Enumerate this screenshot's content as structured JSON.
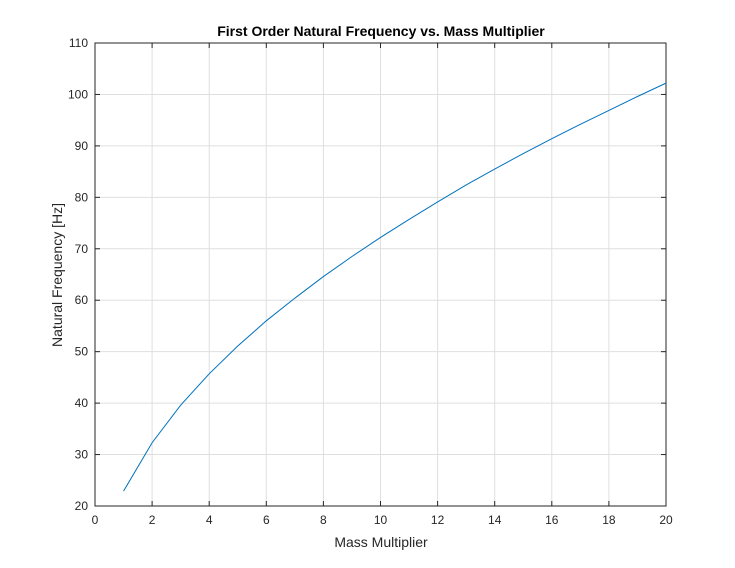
{
  "chart_data": {
    "type": "line",
    "title": "First Order Natural Frequency vs. Mass Multiplier",
    "xlabel": "Mass Multiplier",
    "ylabel": "Natural Frequency [Hz]",
    "xlim": [
      0,
      20
    ],
    "ylim": [
      20,
      110
    ],
    "xticks": [
      0,
      2,
      4,
      6,
      8,
      10,
      12,
      14,
      16,
      18,
      20
    ],
    "yticks": [
      20,
      30,
      40,
      50,
      60,
      70,
      80,
      90,
      100,
      110
    ],
    "grid": true,
    "line_color": "#0072BD",
    "series": [
      {
        "x": [
          1,
          2,
          3,
          4,
          5,
          6,
          7,
          8,
          9,
          10,
          11,
          12,
          13,
          14,
          15,
          16,
          17,
          18,
          19,
          20
        ],
        "values": [
          22.9,
          32.3,
          39.6,
          45.7,
          51.1,
          56.0,
          60.4,
          64.6,
          68.5,
          72.2,
          75.7,
          79.1,
          82.4,
          85.5,
          88.5,
          91.4,
          94.2,
          96.9,
          99.6,
          102.2
        ]
      }
    ]
  }
}
